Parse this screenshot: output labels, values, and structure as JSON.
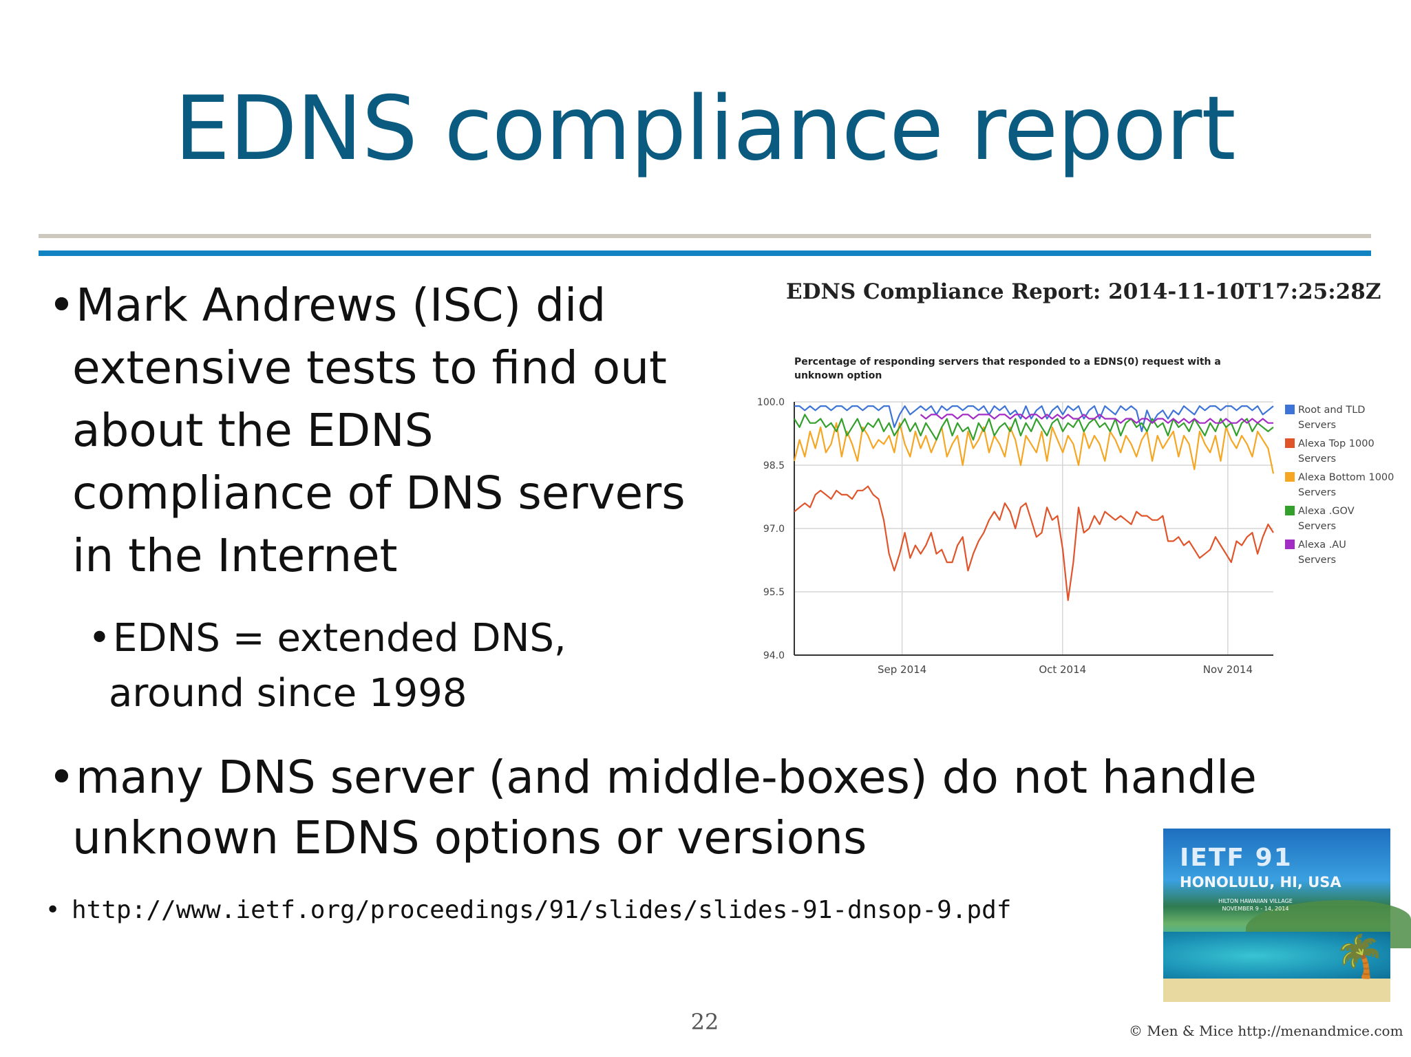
{
  "slide": {
    "title": "EDNS compliance report",
    "page_number": "22",
    "copyright": "© Men & Mice  http://menandmice.com"
  },
  "colors": {
    "title": "#0b5a80",
    "rule_blue": "#1283c2",
    "rule_gray": "#cdc8bd"
  },
  "bullets": {
    "bullet_glyph": "•",
    "b1": {
      "lines": [
        "Mark Andrews (ISC) did",
        "extensive tests to find out",
        "about the EDNS",
        "compliance of DNS servers",
        "in the Internet"
      ]
    },
    "b2": {
      "lines": [
        "EDNS = extended DNS,",
        "around since 1998"
      ]
    },
    "b3": {
      "lines": [
        "many DNS server (and middle-boxes) do not handle",
        "unknown EDNS options or versions"
      ]
    },
    "b4": {
      "text": "http://www.ietf.org/proceedings/91/slides/slides-91-dnsop-9.pdf"
    }
  },
  "ietf_card": {
    "line1": "IETF 91",
    "line2": "HONOLULU, HI, USA",
    "line3": "HILTON HAWAIIAN VILLAGE",
    "line4": "NOVEMBER 9 - 14, 2014",
    "icon": "palm-tree-icon"
  },
  "chart_data": {
    "type": "line",
    "title": "EDNS Compliance Report: 2014-11-10T17:25:28Z",
    "subtitle": "Percentage of responding servers that responded to a EDNS(0) request with a unknown option",
    "ylim": [
      94.0,
      100.0
    ],
    "yticks": [
      "100.0",
      "98.5",
      "97.0",
      "95.5",
      "94.0"
    ],
    "xticks": [
      "Sep 2014",
      "Oct 2014",
      "Nov 2014"
    ],
    "legend_position": "right",
    "grid": true,
    "series": [
      {
        "name": "Root and TLD Servers",
        "color": "#3d74d6",
        "values": [
          99.9,
          99.9,
          99.8,
          99.9,
          99.8,
          99.9,
          99.9,
          99.8,
          99.9,
          99.9,
          99.8,
          99.9,
          99.9,
          99.8,
          99.9,
          99.9,
          99.8,
          99.9,
          99.9,
          99.4,
          99.7,
          99.9,
          99.7,
          99.8,
          99.9,
          99.8,
          99.9,
          99.7,
          99.9,
          99.8,
          99.9,
          99.9,
          99.8,
          99.9,
          99.9,
          99.8,
          99.9,
          99.7,
          99.9,
          99.8,
          99.9,
          99.7,
          99.8,
          99.6,
          99.9,
          99.6,
          99.8,
          99.9,
          99.6,
          99.8,
          99.9,
          99.7,
          99.9,
          99.8,
          99.9,
          99.6,
          99.8,
          99.9,
          99.6,
          99.9,
          99.8,
          99.7,
          99.9,
          99.8,
          99.9,
          99.8,
          99.3,
          99.8,
          99.5,
          99.7,
          99.8,
          99.6,
          99.8,
          99.7,
          99.9,
          99.8,
          99.7,
          99.9,
          99.8,
          99.9,
          99.9,
          99.8,
          99.9,
          99.9,
          99.8,
          99.9,
          99.9,
          99.8,
          99.9,
          99.7,
          99.8,
          99.9
        ]
      },
      {
        "name": "Alexa Top 1000 Servers",
        "color": "#e0542a",
        "values": [
          97.4,
          97.5,
          97.6,
          97.5,
          97.8,
          97.9,
          97.8,
          97.7,
          97.9,
          97.8,
          97.8,
          97.7,
          97.9,
          97.9,
          98.0,
          97.8,
          97.7,
          97.2,
          96.4,
          96.0,
          96.4,
          96.9,
          96.3,
          96.6,
          96.4,
          96.6,
          96.9,
          96.4,
          96.5,
          96.2,
          96.2,
          96.6,
          96.8,
          96.0,
          96.4,
          96.7,
          96.9,
          97.2,
          97.4,
          97.2,
          97.6,
          97.4,
          97.0,
          97.5,
          97.6,
          97.2,
          96.8,
          96.9,
          97.5,
          97.2,
          97.3,
          96.5,
          95.3,
          96.2,
          97.5,
          96.9,
          97.0,
          97.3,
          97.1,
          97.4,
          97.3,
          97.2,
          97.3,
          97.2,
          97.1,
          97.4,
          97.3,
          97.3,
          97.2,
          97.2,
          97.3,
          96.7,
          96.7,
          96.8,
          96.6,
          96.7,
          96.5,
          96.3,
          96.4,
          96.5,
          96.8,
          96.6,
          96.4,
          96.2,
          96.7,
          96.6,
          96.8,
          96.9,
          96.4,
          96.8,
          97.1,
          96.9
        ]
      },
      {
        "name": "Alexa Bottom 1000 Servers",
        "color": "#f5a623",
        "values": [
          98.6,
          99.1,
          98.7,
          99.3,
          98.9,
          99.4,
          98.8,
          99.0,
          99.5,
          98.7,
          99.3,
          99.0,
          98.6,
          99.4,
          99.2,
          98.9,
          99.1,
          99.0,
          99.2,
          98.8,
          99.5,
          99.0,
          98.7,
          99.3,
          98.9,
          99.2,
          98.8,
          99.1,
          99.4,
          98.7,
          99.0,
          99.2,
          98.5,
          99.3,
          98.9,
          99.1,
          99.4,
          98.8,
          99.2,
          99.0,
          98.7,
          99.4,
          99.1,
          98.5,
          99.2,
          99.0,
          98.8,
          99.3,
          98.6,
          99.4,
          99.1,
          98.8,
          99.2,
          99.0,
          98.5,
          99.3,
          98.9,
          99.2,
          99.0,
          98.6,
          99.3,
          99.1,
          98.8,
          99.2,
          99.0,
          98.7,
          99.1,
          99.3,
          98.6,
          99.2,
          98.9,
          99.1,
          99.3,
          98.7,
          99.2,
          99.0,
          98.4,
          99.3,
          99.0,
          98.8,
          99.2,
          98.6,
          99.4,
          99.1,
          98.9,
          99.2,
          99.0,
          98.7,
          99.3,
          99.1,
          98.9,
          98.3
        ]
      },
      {
        "name": "Alexa .GOV Servers",
        "color": "#33a02c",
        "values": [
          99.6,
          99.4,
          99.7,
          99.5,
          99.5,
          99.6,
          99.4,
          99.5,
          99.3,
          99.6,
          99.2,
          99.4,
          99.6,
          99.3,
          99.5,
          99.4,
          99.6,
          99.3,
          99.5,
          99.2,
          99.4,
          99.6,
          99.3,
          99.5,
          99.2,
          99.5,
          99.3,
          99.1,
          99.4,
          99.6,
          99.2,
          99.5,
          99.3,
          99.4,
          99.1,
          99.5,
          99.3,
          99.6,
          99.2,
          99.4,
          99.5,
          99.3,
          99.6,
          99.2,
          99.5,
          99.3,
          99.6,
          99.4,
          99.2,
          99.5,
          99.6,
          99.3,
          99.5,
          99.4,
          99.6,
          99.3,
          99.5,
          99.6,
          99.4,
          99.5,
          99.3,
          99.6,
          99.2,
          99.5,
          99.6,
          99.4,
          99.5,
          99.3,
          99.6,
          99.4,
          99.5,
          99.2,
          99.6,
          99.4,
          99.5,
          99.3,
          99.6,
          99.4,
          99.2,
          99.5,
          99.3,
          99.6,
          99.4,
          99.5,
          99.2,
          99.5,
          99.6,
          99.3,
          99.5,
          99.4,
          99.3,
          99.4
        ]
      },
      {
        "name": "Alexa .AU Servers",
        "color": "#a32cc4",
        "values": [
          null,
          null,
          null,
          null,
          null,
          null,
          null,
          null,
          null,
          null,
          null,
          null,
          null,
          null,
          null,
          null,
          null,
          null,
          null,
          null,
          null,
          null,
          null,
          null,
          99.7,
          99.6,
          99.7,
          99.7,
          99.6,
          99.7,
          99.7,
          99.6,
          99.7,
          99.7,
          99.6,
          99.7,
          99.7,
          99.7,
          99.6,
          99.7,
          99.7,
          99.6,
          99.7,
          99.7,
          99.6,
          99.7,
          99.7,
          99.6,
          99.7,
          99.6,
          99.7,
          99.6,
          99.7,
          99.6,
          99.6,
          99.7,
          99.6,
          99.6,
          99.7,
          99.6,
          99.6,
          99.6,
          99.5,
          99.6,
          99.6,
          99.5,
          99.6,
          99.6,
          99.5,
          99.6,
          99.6,
          99.5,
          99.6,
          99.5,
          99.6,
          99.5,
          99.6,
          99.5,
          99.5,
          99.6,
          99.5,
          99.5,
          99.6,
          99.5,
          99.5,
          99.6,
          99.5,
          99.6,
          99.5,
          99.6,
          99.5,
          99.5
        ]
      }
    ]
  }
}
